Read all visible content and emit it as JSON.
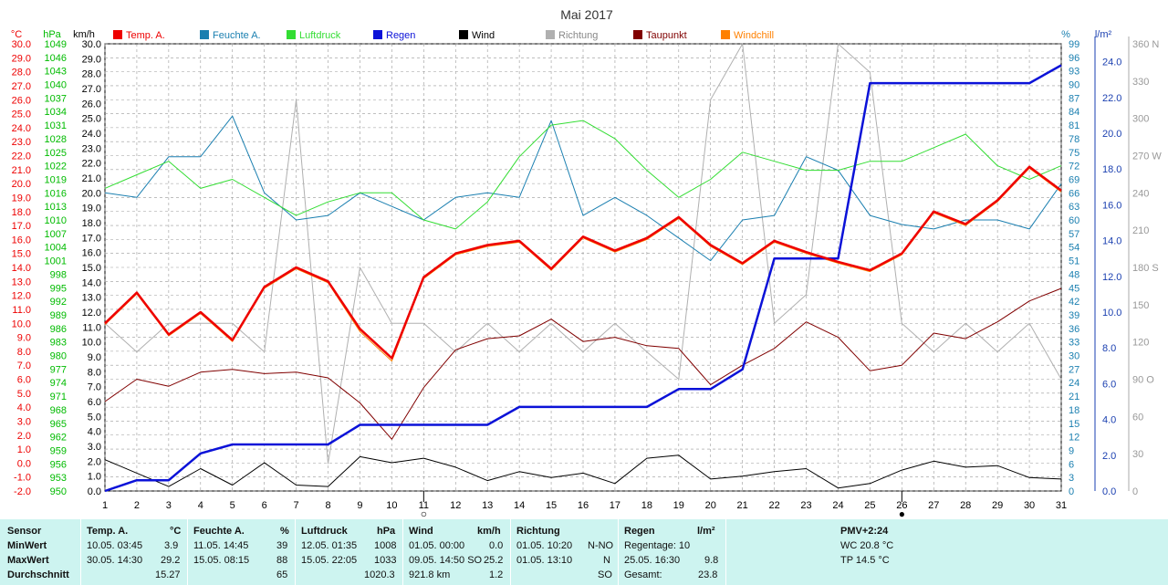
{
  "chart_data": {
    "type": "line",
    "title": "Mai 2017",
    "x": [
      1,
      2,
      3,
      4,
      5,
      6,
      7,
      8,
      9,
      10,
      11,
      12,
      13,
      14,
      15,
      16,
      17,
      18,
      19,
      20,
      21,
      22,
      23,
      24,
      25,
      26,
      27,
      28,
      29,
      30,
      31
    ],
    "x_range": [
      1,
      31
    ],
    "grid": true,
    "legend_position": "top",
    "markers": [
      {
        "x": 11,
        "symbol": "○"
      },
      {
        "x": 26,
        "symbol": "●"
      }
    ],
    "axes": {
      "temp": {
        "unit": "°C",
        "range": [
          -2.0,
          30.0
        ],
        "color": "#ee0000"
      },
      "press": {
        "unit": "hPa",
        "range": [
          950,
          1049
        ],
        "color": "#00cc00"
      },
      "wind": {
        "unit": "km/h",
        "range": [
          0.0,
          30.0
        ],
        "color": "#000000"
      },
      "hum": {
        "unit": "%",
        "range": [
          0,
          99
        ],
        "color": "#1a7fb0"
      },
      "rain": {
        "unit": "l/m²",
        "range": [
          0.0,
          25.0
        ],
        "color": "#1a3fb0"
      },
      "dir": {
        "unit": "",
        "range": [
          0,
          360
        ],
        "color": "#aaaaaa"
      }
    },
    "series": [
      {
        "name": "Temp. A.",
        "axis": "temp",
        "color": "#ee0000",
        "width": 2.5,
        "values": [
          10.0,
          12.2,
          9.2,
          10.8,
          8.8,
          12.6,
          14.0,
          13.0,
          9.6,
          7.5,
          13.3,
          15.0,
          15.6,
          15.9,
          13.9,
          16.2,
          15.2,
          16.1,
          17.6,
          15.6,
          14.3,
          15.9,
          15.1,
          14.4,
          13.8,
          15.0,
          18.0,
          17.1,
          18.8,
          21.2,
          19.5
        ]
      },
      {
        "name": "Feuchte A.",
        "axis": "hum",
        "color": "#1a7fb0",
        "width": 1,
        "values": [
          66,
          65,
          74,
          74,
          83,
          66,
          60,
          61,
          66,
          63,
          60,
          65,
          66,
          65,
          82,
          61,
          65,
          61,
          56,
          51,
          60,
          61,
          74,
          71,
          61,
          59,
          58,
          60,
          60,
          58,
          68
        ]
      },
      {
        "name": "Luftdruck",
        "axis": "press",
        "color": "#33dd33",
        "width": 1,
        "values": [
          1017,
          1020,
          1023,
          1017,
          1019,
          1015,
          1011,
          1014,
          1016,
          1016,
          1010,
          1008,
          1014,
          1024,
          1031,
          1032,
          1028,
          1021,
          1015,
          1019,
          1025,
          1023,
          1021,
          1021,
          1023,
          1023,
          1026,
          1029,
          1022,
          1019,
          1022
        ]
      },
      {
        "name": "Regen",
        "axis": "rain",
        "color": "#0b12d8",
        "width": 2.5,
        "values": [
          0.0,
          0.6,
          0.6,
          2.1,
          2.6,
          2.6,
          2.6,
          2.6,
          3.7,
          3.7,
          3.7,
          3.7,
          3.7,
          4.7,
          4.7,
          4.7,
          4.7,
          4.7,
          5.7,
          5.7,
          6.8,
          13.0,
          13.0,
          13.0,
          22.8,
          22.8,
          22.8,
          22.8,
          22.8,
          22.8,
          23.8
        ]
      },
      {
        "name": "Wind",
        "axis": "wind",
        "color": "#000000",
        "width": 1,
        "values": [
          2.1,
          1.2,
          0.3,
          1.5,
          0.4,
          1.9,
          0.4,
          0.3,
          2.3,
          1.9,
          2.2,
          1.6,
          0.7,
          1.3,
          0.9,
          1.2,
          0.5,
          2.2,
          2.4,
          0.8,
          1.0,
          1.3,
          1.5,
          0.2,
          0.5,
          1.4,
          2.0,
          1.6,
          1.7,
          0.9,
          0.8
        ]
      },
      {
        "name": "Richtung",
        "axis": "dir",
        "color": "#b0b0b0",
        "width": 1,
        "values": [
          135,
          112,
          135,
          135,
          135,
          112,
          315,
          22,
          180,
          135,
          135,
          112,
          135,
          112,
          135,
          112,
          135,
          112,
          90,
          315,
          360,
          135,
          158,
          360,
          337,
          135,
          112,
          135,
          112,
          135,
          90
        ]
      },
      {
        "name": "Taupunkt",
        "axis": "temp",
        "color": "#800000",
        "width": 1,
        "values": [
          4.4,
          6.0,
          5.5,
          6.5,
          6.7,
          6.4,
          6.5,
          6.1,
          4.3,
          1.7,
          5.4,
          8.1,
          8.9,
          9.1,
          10.3,
          8.7,
          9.0,
          8.4,
          8.2,
          5.6,
          7.0,
          8.2,
          10.1,
          9.0,
          6.6,
          7.0,
          9.3,
          8.9,
          10.1,
          11.6,
          12.5
        ]
      },
      {
        "name": "Windchill",
        "axis": "temp",
        "color": "#ff8000",
        "width": 1,
        "values": [
          9.9,
          12.1,
          9.1,
          10.7,
          8.7,
          12.5,
          13.9,
          12.9,
          9.4,
          7.3,
          13.2,
          14.9,
          15.5,
          15.8,
          13.8,
          16.1,
          15.1,
          16.0,
          17.5,
          15.5,
          14.2,
          15.8,
          15.0,
          14.3,
          13.7,
          14.9,
          17.9,
          17.0,
          18.7,
          21.1,
          19.4
        ]
      }
    ],
    "legend": [
      "Temp. A.",
      "Feuchte A.",
      "Luftdruck",
      "Regen",
      "Wind",
      "Richtung",
      "Taupunkt",
      "Windchill"
    ],
    "axis_units": {
      "temp": "°C",
      "press": "hPa",
      "wind": "km/h",
      "hum": "%",
      "rain": "l/m²"
    },
    "ticks": {
      "temp": [
        "30.0",
        "29.0",
        "28.0",
        "27.0",
        "26.0",
        "25.0",
        "24.0",
        "23.0",
        "22.0",
        "21.0",
        "20.0",
        "19.0",
        "18.0",
        "17.0",
        "16.0",
        "15.0",
        "14.0",
        "13.0",
        "12.0",
        "11.0",
        "10.0",
        "9.0",
        "8.0",
        "7.0",
        "6.0",
        "5.0",
        "4.0",
        "3.0",
        "2.0",
        "1.0",
        "0.0",
        "-1.0",
        "-2.0"
      ],
      "press": [
        "1049",
        "1046",
        "1043",
        "1040",
        "1037",
        "1034",
        "1031",
        "1028",
        "1025",
        "1022",
        "1019",
        "1016",
        "1013",
        "1010",
        "1007",
        "1004",
        "1001",
        "998",
        "995",
        "992",
        "989",
        "986",
        "983",
        "980",
        "977",
        "974",
        "971",
        "968",
        "965",
        "962",
        "959",
        "956",
        "953",
        "950"
      ],
      "wind": [
        "30.0",
        "29.0",
        "28.0",
        "27.0",
        "26.0",
        "25.0",
        "24.0",
        "23.0",
        "22.0",
        "21.0",
        "20.0",
        "19.0",
        "18.0",
        "17.0",
        "16.0",
        "15.0",
        "14.0",
        "13.0",
        "12.0",
        "11.0",
        "10.0",
        "9.0",
        "8.0",
        "7.0",
        "6.0",
        "5.0",
        "4.0",
        "3.0",
        "2.0",
        "1.0",
        "0.0"
      ],
      "hum": [
        "99",
        "96",
        "93",
        "90",
        "87",
        "84",
        "81",
        "78",
        "75",
        "72",
        "69",
        "66",
        "63",
        "60",
        "57",
        "54",
        "51",
        "48",
        "45",
        "42",
        "39",
        "36",
        "33",
        "30",
        "27",
        "24",
        "21",
        "18",
        "15",
        "12",
        "9",
        "6",
        "3",
        "0"
      ],
      "rain": [
        "24.0",
        "22.0",
        "20.0",
        "18.0",
        "16.0",
        "14.0",
        "12.0",
        "10.0",
        "8.0",
        "6.0",
        "4.0",
        "2.0",
        "0.0"
      ],
      "dir": [
        "360 N",
        "330",
        "300",
        "270 W",
        "240",
        "210",
        "180 S",
        "150",
        "120",
        "90 O",
        "60",
        "30",
        "0"
      ],
      "x": [
        "1",
        "2",
        "3",
        "4",
        "5",
        "6",
        "7",
        "8",
        "9",
        "10",
        "11",
        "12",
        "13",
        "14",
        "15",
        "16",
        "17",
        "18",
        "19",
        "20",
        "21",
        "22",
        "23",
        "24",
        "25",
        "26",
        "27",
        "28",
        "29",
        "30",
        "31"
      ]
    }
  },
  "stats": {
    "row_labels": [
      "Sensor",
      "MinWert",
      "MaxWert",
      "Durchschnitt"
    ],
    "temp": {
      "title": "Temp. A.",
      "unit": "°C",
      "min_time": "10.05.  03:45",
      "min": "3.9",
      "max_time": "30.05.  14:30",
      "max": "29.2",
      "avg": "15.27"
    },
    "hum": {
      "title": "Feuchte A.",
      "unit": "%",
      "min_time": "11.05.  14:45",
      "min": "39",
      "max_time": "15.05.  08:15",
      "max": "88",
      "avg": "65"
    },
    "press": {
      "title": "Luftdruck",
      "unit": "hPa",
      "min_time": "12.05.  01:35",
      "min": "1008",
      "max_time": "15.05.  22:05",
      "max": "1033",
      "avg": "1020.3"
    },
    "wind": {
      "title": "Wind",
      "unit": "km/h",
      "min_time": "01.05.  00:00",
      "min": "0.0",
      "max_time": "09.05.  14:50 SO",
      "max": "25.2",
      "avg_label": "921.8 km",
      "avg": "1.2"
    },
    "dir": {
      "title": "Richtung",
      "min_time": "01.05.  10:20",
      "min": "N-NO",
      "max_time": "01.05.  13:10",
      "max": "N",
      "avg": "SO"
    },
    "rain": {
      "title": "Regen",
      "unit": "l/m²",
      "days": "Regentage: 10",
      "max_time": "25.05.  16:30",
      "max": "9.8",
      "total_label": "Gesamt:",
      "total": "23.8"
    },
    "pmv": {
      "title": "PMV+2:24",
      "wc": "WC 20.8 °C",
      "tp": "TP 14.5 °C"
    }
  }
}
